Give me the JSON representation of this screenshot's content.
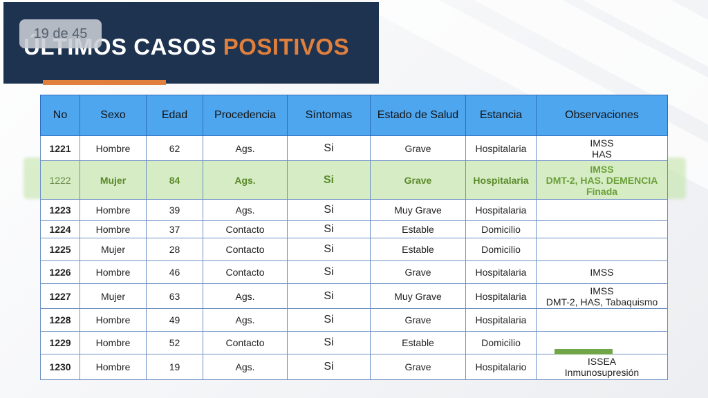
{
  "slide": {
    "page_indicator": "19 de 45",
    "title_white": "ÚLTIMOS CASOS",
    "title_orange": "POSITIVOS"
  },
  "table": {
    "headers": [
      "No",
      "Sexo",
      "Edad",
      "Procedencia",
      "Síntomas",
      "Estado de Salud",
      "Estancia",
      "Observaciones"
    ],
    "rows": [
      {
        "no": "1221",
        "sexo": "Hombre",
        "edad": "62",
        "proc": "Ags.",
        "sint": "Si",
        "estado": "Grave",
        "estancia": "Hospitalaria",
        "obs": [
          "IMSS",
          "HAS"
        ]
      },
      {
        "no": "1222",
        "sexo": "Mujer",
        "edad": "84",
        "proc": "Ags.",
        "sint": "Si",
        "estado": "Grave",
        "estancia": "Hospitalaria",
        "obs": [
          "IMSS",
          "DMT-2, HAS. DEMENCIA",
          "Finada"
        ]
      },
      {
        "no": "1223",
        "sexo": "Hombre",
        "edad": "39",
        "proc": "Ags.",
        "sint": "Si",
        "estado": "Muy Grave",
        "estancia": "Hospitalaria",
        "obs": []
      },
      {
        "no": "1224",
        "sexo": "Hombre",
        "edad": "37",
        "proc": "Contacto",
        "sint": "Si",
        "estado": "Estable",
        "estancia": "Domicilio",
        "obs": []
      },
      {
        "no": "1225",
        "sexo": "Mujer",
        "edad": "28",
        "proc": "Contacto",
        "sint": "Si",
        "estado": "Estable",
        "estancia": "Domicilio",
        "obs": []
      },
      {
        "no": "1226",
        "sexo": "Hombre",
        "edad": "46",
        "proc": "Contacto",
        "sint": "Si",
        "estado": "Grave",
        "estancia": "Hospitalaria",
        "obs": [
          "IMSS"
        ]
      },
      {
        "no": "1227",
        "sexo": "Mujer",
        "edad": "63",
        "proc": "Ags.",
        "sint": "Si",
        "estado": "Muy Grave",
        "estancia": "Hospitalaria",
        "obs": [
          "IMSS",
          "DMT-2, HAS, Tabaquismo"
        ]
      },
      {
        "no": "1228",
        "sexo": "Hombre",
        "edad": "49",
        "proc": "Ags.",
        "sint": "Si",
        "estado": "Grave",
        "estancia": "Hospitalaria",
        "obs": []
      },
      {
        "no": "1229",
        "sexo": "Hombre",
        "edad": "52",
        "proc": "Contacto",
        "sint": "Si",
        "estado": "Estable",
        "estancia": "Domicilio",
        "obs": []
      },
      {
        "no": "1230",
        "sexo": "Hombre",
        "edad": "19",
        "proc": "Ags.",
        "sint": "Si",
        "estado": "Grave",
        "estancia": "Hospitalario",
        "obs": [
          "ISSEA",
          "Inmunosupresión"
        ]
      }
    ],
    "highlight_row": "1222"
  },
  "colors": {
    "header_band": "#1e3350",
    "title_orange": "#e0803c",
    "table_header": "#4ea6ef",
    "highlight_green": "#d6ecc4"
  }
}
